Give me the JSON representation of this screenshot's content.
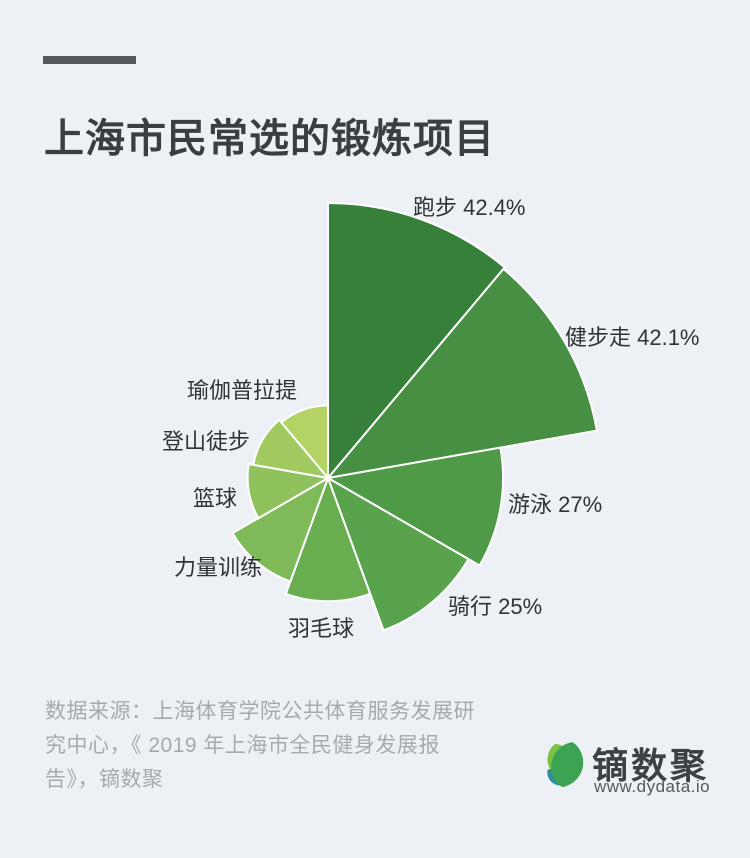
{
  "page": {
    "background_color": "#edf1f6",
    "accent_bar_color": "#54575b"
  },
  "header": {
    "title": "上海市民常选的锻炼项目"
  },
  "chart_data": {
    "type": "pie",
    "variant": "nightingale-rose",
    "title": "上海市民常选的锻炼项目",
    "unit": "%",
    "start_angle_deg": 0,
    "sweep_per_slice_deg": 40,
    "note": "radius proportional to value; only first four slices show value labels, remaining values estimated from arc radii",
    "items": [
      {
        "id": "running",
        "name": "跑步",
        "value": 42.4,
        "label": "跑步 42.4%",
        "color": "#37803a"
      },
      {
        "id": "brisk-walking",
        "name": "健步走",
        "value": 42.1,
        "label": "健步走 42.1%",
        "color": "#478f42"
      },
      {
        "id": "swimming",
        "name": "游泳",
        "value": 27,
        "label": "游泳 27%",
        "color": "#4e9a47"
      },
      {
        "id": "cycling",
        "name": "骑行",
        "value": 25,
        "label": "骑行 25%",
        "color": "#58a34b"
      },
      {
        "id": "badminton",
        "name": "羽毛球",
        "value": 19,
        "label": "羽毛球",
        "color": "#68ae51"
      },
      {
        "id": "strength-training",
        "name": "力量训练",
        "value": 17,
        "label": "力量训练",
        "color": "#7eba58"
      },
      {
        "id": "basketball",
        "name": "篮球",
        "value": 12.4,
        "label": "篮球",
        "color": "#8fc25d"
      },
      {
        "id": "hiking",
        "name": "登山徒步",
        "value": 11.7,
        "label": "登山徒步",
        "color": "#a0ca60"
      },
      {
        "id": "yoga-pilates",
        "name": "瑜伽普拉提",
        "value": 11.2,
        "label": "瑜伽普拉提",
        "color": "#b4d365"
      }
    ]
  },
  "footer": {
    "source_text": "数据来源：上海体育学院公共体育服务发展研究中心，《 2019 年上海市全民健身发展报告》，镝数聚",
    "brand": {
      "name": "镝数聚",
      "website": "www.dydata.io"
    }
  }
}
